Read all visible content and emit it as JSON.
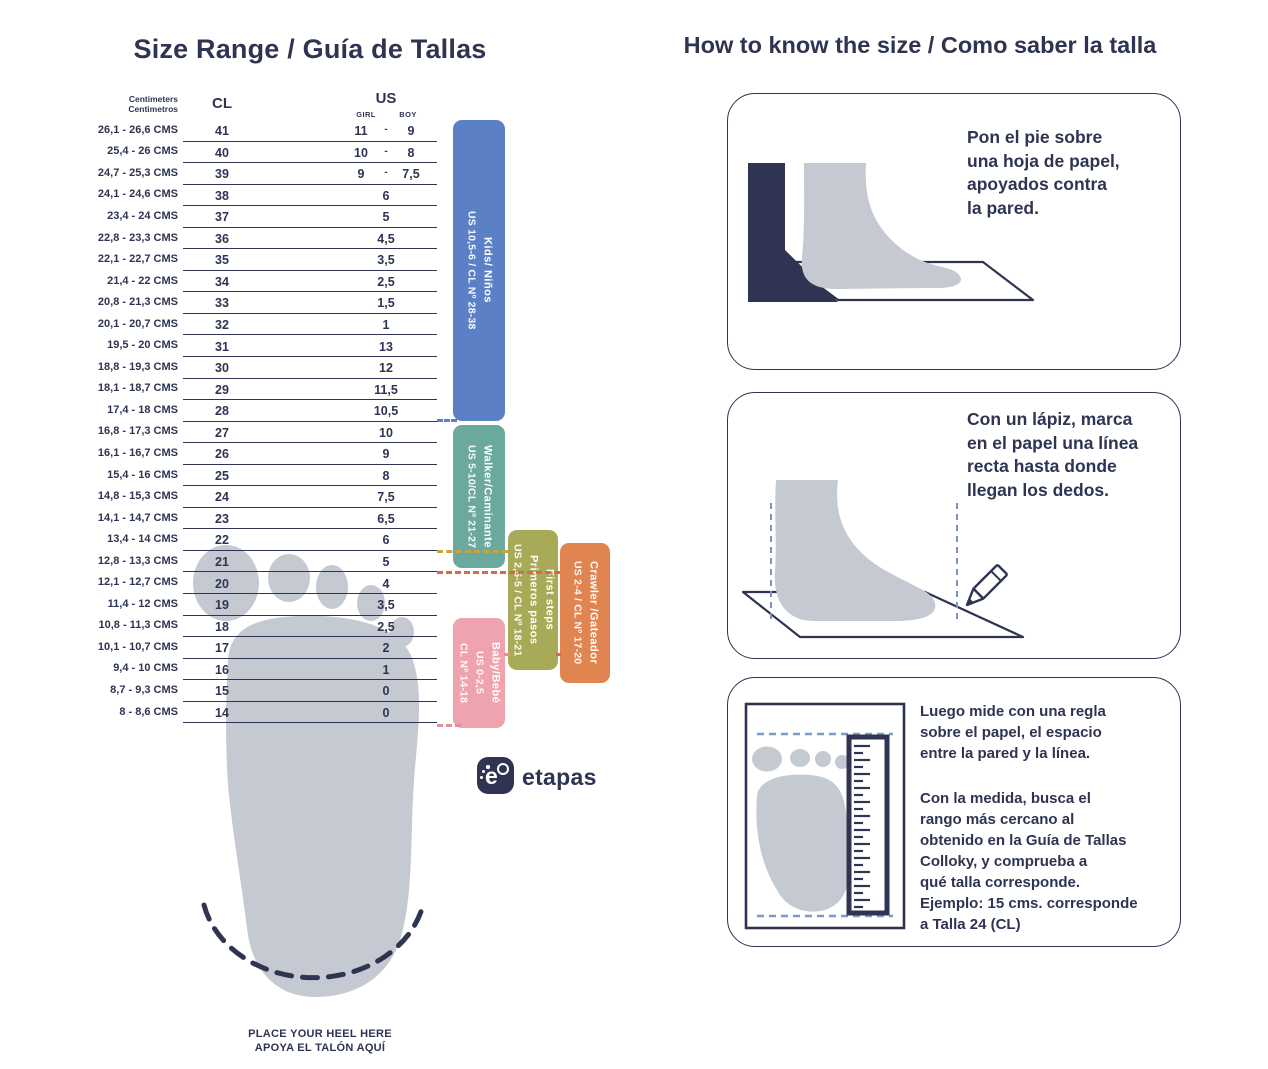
{
  "left": {
    "title": "Size Range / Guía de Tallas",
    "table": {
      "header": {
        "cm": "Centimeters\nCentimetros",
        "cl": "CL",
        "us": "US",
        "girl": "GIRL",
        "boy": "BOY"
      },
      "girl_boy_sep": "-",
      "rows": [
        {
          "cms": "26,1 - 26,6 CMS",
          "cl": "41",
          "girl": "11",
          "boy": "9"
        },
        {
          "cms": "25,4 - 26 CMS",
          "cl": "40",
          "girl": "10",
          "boy": "8"
        },
        {
          "cms": "24,7 - 25,3 CMS",
          "cl": "39",
          "girl": "9",
          "boy": "7,5"
        },
        {
          "cms": "24,1 - 24,6 CMS",
          "cl": "38",
          "us": "6"
        },
        {
          "cms": "23,4 - 24 CMS",
          "cl": "37",
          "us": "5"
        },
        {
          "cms": "22,8 - 23,3 CMS",
          "cl": "36",
          "us": "4,5"
        },
        {
          "cms": "22,1 - 22,7 CMS",
          "cl": "35",
          "us": "3,5"
        },
        {
          "cms": "21,4 - 22 CMS",
          "cl": "34",
          "us": "2,5"
        },
        {
          "cms": "20,8 - 21,3 CMS",
          "cl": "33",
          "us": "1,5"
        },
        {
          "cms": "20,1 - 20,7 CMS",
          "cl": "32",
          "us": "1"
        },
        {
          "cms": "19,5 - 20 CMS",
          "cl": "31",
          "us": "13"
        },
        {
          "cms": "18,8 - 19,3 CMS",
          "cl": "30",
          "us": "12"
        },
        {
          "cms": "18,1 - 18,7 CMS",
          "cl": "29",
          "us": "11,5"
        },
        {
          "cms": "17,4 - 18 CMS",
          "cl": "28",
          "us": "10,5"
        },
        {
          "cms": "16,8 - 17,3 CMS",
          "cl": "27",
          "us": "10"
        },
        {
          "cms": "16,1 - 16,7 CMS",
          "cl": "26",
          "us": "9"
        },
        {
          "cms": "15,4 - 16 CMS",
          "cl": "25",
          "us": "8"
        },
        {
          "cms": "14,8 - 15,3 CMS",
          "cl": "24",
          "us": "7,5"
        },
        {
          "cms": "14,1 - 14,7 CMS",
          "cl": "23",
          "us": "6,5"
        },
        {
          "cms": "13,4 - 14 CMS",
          "cl": "22",
          "us": "6"
        },
        {
          "cms": "12,8 - 13,3 CMS",
          "cl": "21",
          "us": "5"
        },
        {
          "cms": "12,1 - 12,7 CMS",
          "cl": "20",
          "us": "4"
        },
        {
          "cms": "11,4 - 12 CMS",
          "cl": "19",
          "us": "3,5"
        },
        {
          "cms": "10,8 - 11,3 CMS",
          "cl": "18",
          "us": "2,5"
        },
        {
          "cms": "10,1 - 10,7 CMS",
          "cl": "17",
          "us": "2"
        },
        {
          "cms": "9,4 - 10 CMS",
          "cl": "16",
          "us": "1"
        },
        {
          "cms": "8,7 - 9,3 CMS",
          "cl": "15",
          "us": "0"
        },
        {
          "cms": "8 - 8,6 CMS",
          "cl": "14",
          "us": "0"
        }
      ]
    },
    "categories": [
      {
        "id": "kids",
        "color": "#5c80c6",
        "lines": [
          {
            "text": "Kids/ Niños",
            "bold": true
          },
          {
            "text": "US 10,5-6 / CL Nº 28-38",
            "bold": false
          }
        ]
      },
      {
        "id": "walker",
        "color": "#6ba89d",
        "lines": [
          {
            "text": "Walker/Caminante",
            "bold": true
          },
          {
            "text": "US 5-10/CL Nº 21-27",
            "bold": false
          }
        ]
      },
      {
        "id": "first-steps",
        "color": "#a9aa58",
        "lines": [
          {
            "text": "First steps",
            "bold": true
          },
          {
            "text": "Primeros pasos",
            "bold": true
          },
          {
            "text": "US 2,5-5 / CL Nº 18-21",
            "bold": false
          }
        ]
      },
      {
        "id": "crawler",
        "color": "#e08450",
        "lines": [
          {
            "text": "Crawler /Gateador",
            "bold": true
          },
          {
            "text": "US 2-4 / CL Nº 17-20",
            "bold": false
          }
        ]
      },
      {
        "id": "baby",
        "color": "#efa3ae",
        "lines": [
          {
            "text": "Baby/Bebé",
            "bold": true
          },
          {
            "text": "US 0-2,5",
            "bold": false
          },
          {
            "text": "CL Nº 14-18",
            "bold": false
          }
        ]
      }
    ],
    "heel_note_line1": "PLACE YOUR HEEL HERE",
    "heel_note_line2": "APOYA EL TALÓN AQUÍ",
    "logo_text": "etapas",
    "logo_letter": "e"
  },
  "right": {
    "title": "How to know the size / Como saber la talla",
    "steps": [
      {
        "text": "Pon el pie sobre\nuna hoja de papel,\napoyados contra\nla pared."
      },
      {
        "text": "Con un lápiz, marca\nen el papel una línea\nrecta hasta donde\nllegan los dedos."
      },
      {
        "text_p1": "Luego mide con una regla\nsobre el papel, el espacio\nentre la pared y la línea.",
        "text_p2": "Con la medida, busca el\nrango más cercano al\nobtenido en la Guía de Tallas\nColloky, y comprueba a\nqué talla corresponde.\nEjemplo:  15 cms. corresponde\na Talla 24 (CL)"
      }
    ]
  },
  "palette": {
    "navy_text": "#2e3452",
    "foot_gray": "#c5c9d2",
    "kids_blue": "#5c80c6",
    "walker_teal": "#6ba89d",
    "first_steps_olive": "#a9aa58",
    "crawler_orange": "#e08450",
    "baby_pink": "#efa3ae",
    "dash_yellow": "#c9a33e",
    "dash_red": "#d9694c",
    "dash_pink": "#e58f9b",
    "dash_blue": "#7d9cc9"
  }
}
